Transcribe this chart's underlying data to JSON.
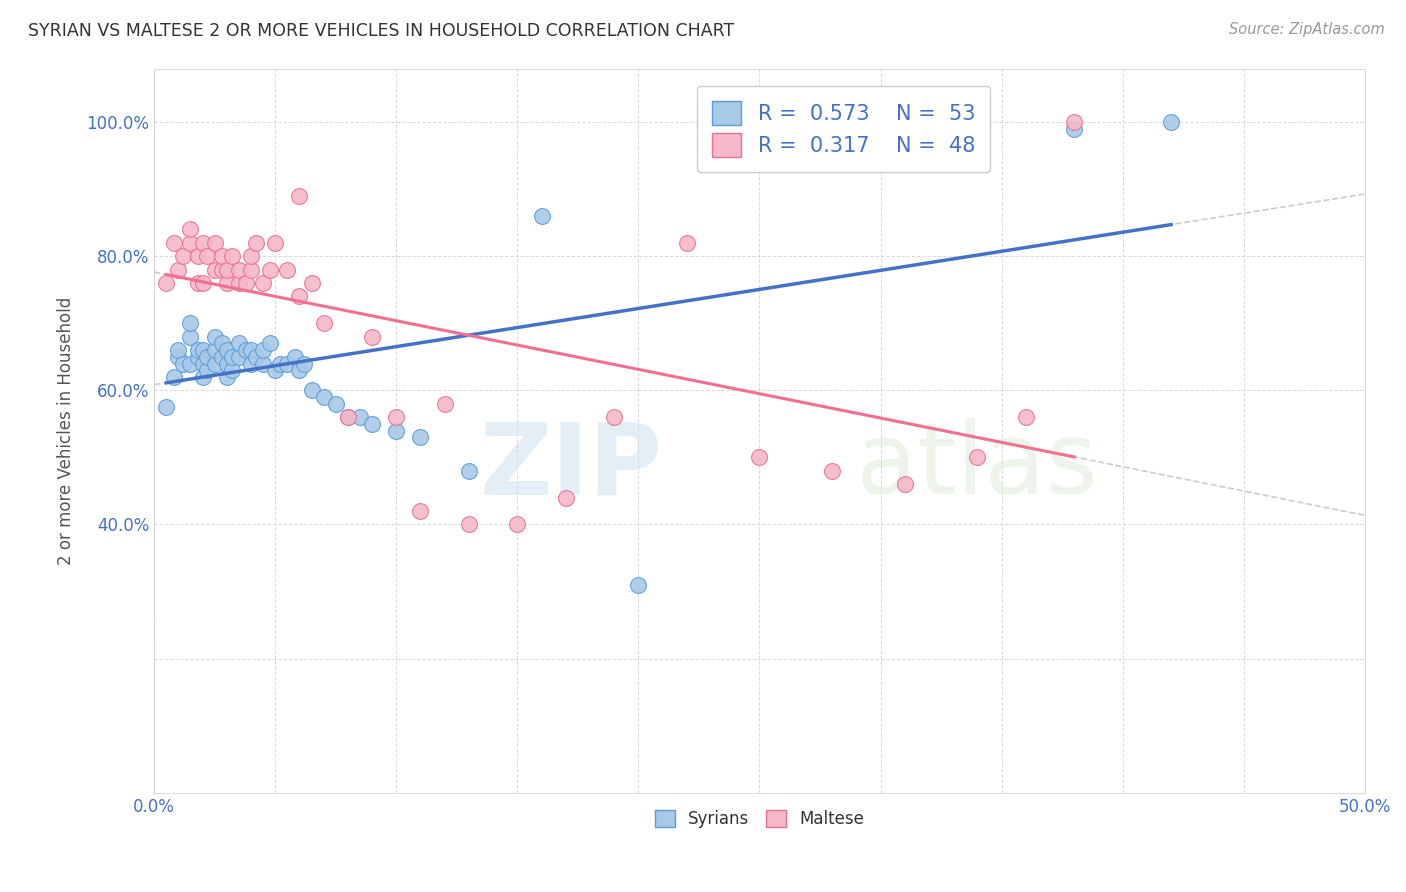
{
  "title": "SYRIAN VS MALTESE 2 OR MORE VEHICLES IN HOUSEHOLD CORRELATION CHART",
  "source": "Source: ZipAtlas.com",
  "ylabel": "2 or more Vehicles in Household",
  "xlim": [
    0.0,
    0.5
  ],
  "ylim": [
    0.0,
    1.08
  ],
  "xtick_positions": [
    0.0,
    0.05,
    0.1,
    0.15,
    0.2,
    0.25,
    0.3,
    0.35,
    0.4,
    0.45,
    0.5
  ],
  "xtick_labels": [
    "0.0%",
    "",
    "",
    "",
    "",
    "",
    "",
    "",
    "",
    "",
    "50.0%"
  ],
  "ytick_positions": [
    0.0,
    0.2,
    0.4,
    0.6,
    0.8,
    1.0
  ],
  "ytick_labels": [
    "",
    "",
    "40.0%",
    "60.0%",
    "80.0%",
    "100.0%"
  ],
  "watermark_zip": "ZIP",
  "watermark_atlas": "atlas",
  "color_syrian": "#a8c8e8",
  "color_maltese": "#f4b8c8",
  "color_edge_syrian": "#5b9bd5",
  "color_edge_maltese": "#e87090",
  "color_line_syrian": "#4472c4",
  "color_line_maltese": "#f07090",
  "color_line_gray": "#cccccc",
  "syrians_x": [
    0.005,
    0.008,
    0.01,
    0.01,
    0.012,
    0.015,
    0.015,
    0.015,
    0.018,
    0.018,
    0.02,
    0.02,
    0.02,
    0.022,
    0.022,
    0.025,
    0.025,
    0.025,
    0.028,
    0.028,
    0.03,
    0.03,
    0.03,
    0.032,
    0.032,
    0.035,
    0.035,
    0.038,
    0.04,
    0.04,
    0.042,
    0.045,
    0.045,
    0.048,
    0.05,
    0.052,
    0.055,
    0.058,
    0.06,
    0.062,
    0.065,
    0.07,
    0.075,
    0.08,
    0.085,
    0.09,
    0.1,
    0.11,
    0.13,
    0.16,
    0.2,
    0.38,
    0.42
  ],
  "syrians_y": [
    0.575,
    0.62,
    0.65,
    0.66,
    0.64,
    0.68,
    0.7,
    0.64,
    0.65,
    0.66,
    0.62,
    0.64,
    0.66,
    0.63,
    0.65,
    0.64,
    0.66,
    0.68,
    0.65,
    0.67,
    0.62,
    0.64,
    0.66,
    0.63,
    0.65,
    0.65,
    0.67,
    0.66,
    0.64,
    0.66,
    0.65,
    0.64,
    0.66,
    0.67,
    0.63,
    0.64,
    0.64,
    0.65,
    0.63,
    0.64,
    0.6,
    0.59,
    0.58,
    0.56,
    0.56,
    0.55,
    0.54,
    0.53,
    0.48,
    0.86,
    0.31,
    0.99,
    1.0
  ],
  "maltese_x": [
    0.005,
    0.008,
    0.01,
    0.012,
    0.015,
    0.015,
    0.018,
    0.018,
    0.02,
    0.02,
    0.022,
    0.025,
    0.025,
    0.028,
    0.028,
    0.03,
    0.03,
    0.032,
    0.035,
    0.035,
    0.038,
    0.04,
    0.04,
    0.042,
    0.045,
    0.048,
    0.05,
    0.055,
    0.06,
    0.065,
    0.07,
    0.08,
    0.09,
    0.1,
    0.11,
    0.12,
    0.13,
    0.15,
    0.17,
    0.19,
    0.22,
    0.25,
    0.28,
    0.31,
    0.34,
    0.36,
    0.38,
    0.06
  ],
  "maltese_y": [
    0.76,
    0.82,
    0.78,
    0.8,
    0.82,
    0.84,
    0.76,
    0.8,
    0.82,
    0.76,
    0.8,
    0.78,
    0.82,
    0.78,
    0.8,
    0.76,
    0.78,
    0.8,
    0.76,
    0.78,
    0.76,
    0.78,
    0.8,
    0.82,
    0.76,
    0.78,
    0.82,
    0.78,
    0.74,
    0.76,
    0.7,
    0.56,
    0.68,
    0.56,
    0.42,
    0.58,
    0.4,
    0.4,
    0.44,
    0.56,
    0.82,
    0.5,
    0.48,
    0.46,
    0.5,
    0.56,
    1.0,
    0.89
  ]
}
